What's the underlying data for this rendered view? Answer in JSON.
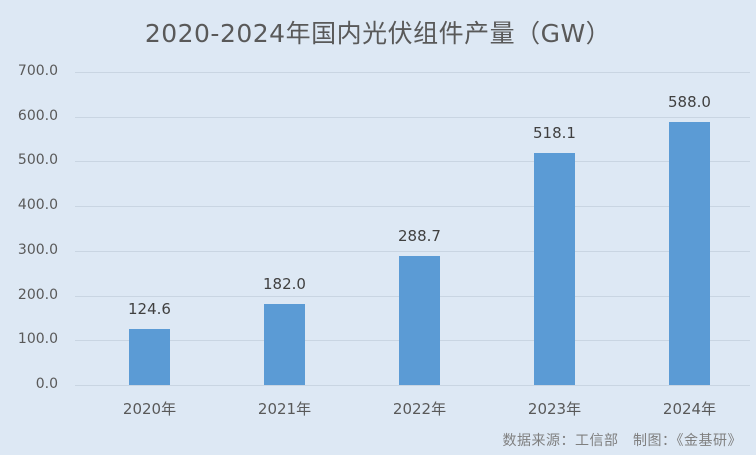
{
  "chart_data": {
    "type": "bar",
    "title": "2020-2024年国内光伏组件产量（GW）",
    "categories": [
      "2020年",
      "2021年",
      "2022年",
      "2023年",
      "2024年"
    ],
    "values": [
      124.6,
      182.0,
      288.7,
      518.1,
      588.0
    ],
    "value_labels": [
      "124.6",
      "182.0",
      "288.7",
      "518.1",
      "588.0"
    ],
    "xlabel": "",
    "ylabel": "",
    "ylim": [
      0,
      700
    ],
    "yticks": [
      "0.0",
      "100.0",
      "200.0",
      "300.0",
      "400.0",
      "500.0",
      "600.0",
      "700.0"
    ],
    "grid": true,
    "legend": "none",
    "bar_color": "#5b9bd5"
  },
  "source": "数据来源：工信部　制图：《金基研》"
}
